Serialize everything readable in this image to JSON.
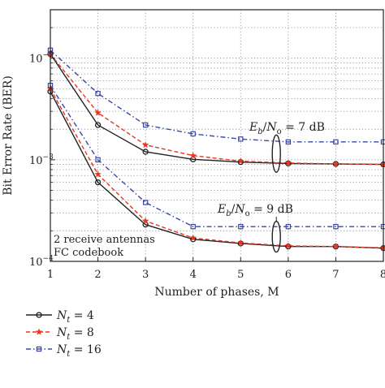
{
  "chart_data": {
    "type": "line",
    "title": "",
    "xlabel": "Number of phases, M",
    "ylabel": "Bit Error Rate (BER)",
    "x": [
      1,
      2,
      3,
      4,
      5,
      6,
      7,
      8
    ],
    "xlim": [
      1,
      8
    ],
    "ylim": [
      0.0001,
      0.03
    ],
    "yscale": "log",
    "grid": true,
    "x_ticks": [
      "1",
      "2",
      "3",
      "4",
      "5",
      "6",
      "7",
      "8"
    ],
    "y_ticks": [
      {
        "value": 0.01,
        "base": "10",
        "exp": "−2"
      },
      {
        "value": 0.001,
        "base": "10",
        "exp": "−3"
      },
      {
        "value": 0.0001,
        "base": "10",
        "exp": "−4"
      }
    ],
    "legend_position": "below",
    "series": [
      {
        "name": "N_t = 4",
        "legend_main": "N",
        "legend_sub": "t",
        "legend_rest": " = 4",
        "color": "#222222",
        "dash": "solid",
        "marker": "circle",
        "groups": [
          {
            "snr_db": 7,
            "values": [
              0.011,
              0.0022,
              0.0012,
              0.00101,
              0.00095,
              0.00092,
              0.00091,
              0.0009
            ]
          },
          {
            "snr_db": 9,
            "values": [
              0.0047,
              0.0006,
              0.00023,
              0.000165,
              0.00015,
              0.00014,
              0.00014,
              0.000135
            ]
          }
        ]
      },
      {
        "name": "N_t = 8",
        "legend_main": "N",
        "legend_sub": "t",
        "legend_rest": " = 8",
        "color": "#e8361f",
        "dash": "dashed",
        "marker": "star",
        "groups": [
          {
            "snr_db": 7,
            "values": [
              0.011,
              0.0029,
              0.0014,
              0.0011,
              0.00097,
              0.00093,
              0.00091,
              0.0009
            ]
          },
          {
            "snr_db": 9,
            "values": [
              0.005,
              0.00072,
              0.00025,
              0.00017,
              0.000152,
              0.000142,
              0.00014,
              0.000136
            ]
          }
        ]
      },
      {
        "name": "N_t = 16",
        "legend_main": "N",
        "legend_sub": "t",
        "legend_rest": " = 16",
        "color": "#3a47a8",
        "dash": "dashdot",
        "marker": "square",
        "groups": [
          {
            "snr_db": 7,
            "values": [
              0.012,
              0.0045,
              0.0022,
              0.0018,
              0.0016,
              0.0015,
              0.0015,
              0.0015
            ]
          },
          {
            "snr_db": 9,
            "values": [
              0.0054,
              0.001,
              0.00038,
              0.00022,
              0.00022,
              0.00022,
              0.00022,
              0.00022
            ]
          }
        ]
      }
    ],
    "annotations": [
      {
        "id": "snr7",
        "parts": [
          "E",
          "b",
          "/",
          "N",
          "o",
          " = 7 dB"
        ]
      },
      {
        "id": "snr9",
        "parts": [
          "E",
          "b",
          "/",
          "N",
          "o",
          " = 9 dB"
        ]
      },
      {
        "id": "config",
        "lines": [
          "2 receive antennas",
          "FC codebook"
        ]
      }
    ]
  }
}
